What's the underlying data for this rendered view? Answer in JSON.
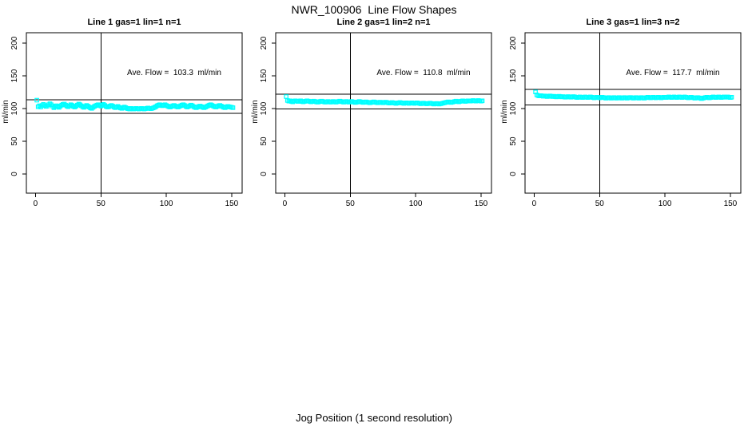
{
  "page_title": "NWR_100906  Line Flow Shapes",
  "xlabel": "Jog Position (1 second resolution)",
  "point_color": "#00FFFF",
  "axis_color": "#000000",
  "chart_data": [
    {
      "type": "scatter",
      "title": "Line 1 gas=1 lin=1 n=1",
      "ylabel": "ml/min",
      "annotation": "Ave. Flow =  103.3  ml/min",
      "ave_flow": 103.3,
      "upper_limit": 113.6,
      "lower_limit": 93.0,
      "vline_x": 50,
      "x_ticks": [
        0,
        50,
        100,
        150
      ],
      "y_ticks": [
        0,
        50,
        100,
        150,
        200
      ],
      "xlim": [
        -7,
        158
      ],
      "ylim": [
        -29,
        216
      ],
      "x_start": 1,
      "x_step": 1,
      "y": [
        113,
        103,
        104.5,
        102.5,
        105,
        106.5,
        105,
        103.5,
        104,
        106,
        107.5,
        106,
        104,
        101.5,
        103,
        104.5,
        103,
        102,
        104,
        105.5,
        106.5,
        107,
        105.5,
        104,
        103,
        104.5,
        106,
        105,
        103.5,
        102.5,
        104,
        105.5,
        107,
        106,
        104.5,
        103,
        102,
        103.5,
        105,
        104,
        102.5,
        101,
        100.5,
        102,
        103.5,
        104.5,
        105.5,
        106,
        105,
        104,
        105.5,
        106.5,
        105,
        103.5,
        102.5,
        103,
        104,
        105,
        104,
        102.5,
        101.5,
        102.5,
        103.5,
        102,
        101,
        100.5,
        101.5,
        102.5,
        101.5,
        100.5,
        100,
        99.5,
        100.5,
        100,
        99.5,
        100,
        100.5,
        100,
        99.5,
        100,
        100.5,
        100,
        99.5,
        100,
        100.5,
        101,
        100.5,
        100,
        100.5,
        101,
        102,
        103,
        104.5,
        105.5,
        106,
        105,
        104.5,
        105.5,
        106,
        105,
        104,
        103,
        102.5,
        103.5,
        104.5,
        105,
        104,
        103,
        102.5,
        103.5,
        104.5,
        105.5,
        106,
        105,
        103.5,
        102.5,
        103.5,
        104.5,
        105.5,
        104.5,
        103,
        102,
        101.5,
        102.5,
        103.5,
        104,
        103,
        102,
        101.5,
        102.5,
        103.5,
        104.5,
        105.5,
        106,
        105,
        104,
        103,
        102.5,
        103.5,
        104.5,
        105,
        104,
        103,
        102,
        101.5,
        102.5,
        103.5,
        103,
        102.5,
        102,
        101.5
      ]
    },
    {
      "type": "scatter",
      "title": "Line 2 gas=1 lin=2 n=1",
      "ylabel": "ml/min",
      "annotation": "Ave. Flow =  110.8  ml/min",
      "ave_flow": 110.8,
      "upper_limit": 121.9,
      "lower_limit": 99.7,
      "vline_x": 50,
      "x_ticks": [
        0,
        50,
        100,
        150
      ],
      "y_ticks": [
        0,
        50,
        100,
        150,
        200
      ],
      "xlim": [
        -7,
        158
      ],
      "ylim": [
        -29,
        216
      ],
      "x_start": 1,
      "x_step": 1,
      "y": [
        118.5,
        112.5,
        111.5,
        112,
        111,
        110.5,
        111.5,
        112,
        111.5,
        111,
        111.5,
        112,
        111,
        110.5,
        111,
        111.5,
        112,
        111.5,
        111,
        110.5,
        111,
        111.5,
        111,
        110.5,
        110,
        110.5,
        111,
        111.5,
        111,
        110.5,
        110,
        110.5,
        111,
        110.5,
        110,
        110.5,
        111,
        110.5,
        110,
        110.5,
        111,
        111.5,
        111,
        110.5,
        110,
        110.5,
        111,
        110.5,
        110,
        110.5,
        111,
        110.5,
        110,
        109.5,
        110,
        110.5,
        111,
        110.5,
        110,
        109.5,
        110,
        110.5,
        110,
        109.5,
        109,
        109.5,
        110,
        110.5,
        110,
        109.5,
        109,
        109.5,
        110,
        109.5,
        109,
        109.5,
        110,
        109.5,
        109,
        108.5,
        109,
        109.5,
        109,
        108.5,
        108,
        108.5,
        109,
        109.5,
        109,
        108.5,
        108,
        108.5,
        109,
        108.5,
        108,
        108.5,
        109,
        108.5,
        108,
        108.5,
        109,
        108.5,
        108,
        107.5,
        108,
        108.5,
        108,
        107.5,
        107.5,
        108,
        108.5,
        108,
        107.5,
        107,
        107.5,
        108,
        107.5,
        107,
        107.5,
        108,
        108.5,
        109,
        109.5,
        110,
        110.5,
        110,
        109.5,
        110,
        110.5,
        111,
        111.5,
        111,
        110.5,
        111,
        111.5,
        112,
        111.5,
        111,
        111.5,
        112,
        112,
        111.5,
        112,
        112.5,
        112,
        111.5,
        112,
        112.5,
        112,
        111.5,
        112
      ]
    },
    {
      "type": "scatter",
      "title": "Line 3 gas=1 lin=3 n=2",
      "ylabel": "ml/min",
      "annotation": "Ave. Flow =  117.7  ml/min",
      "ave_flow": 117.7,
      "upper_limit": 129.5,
      "lower_limit": 105.9,
      "vline_x": 50,
      "x_ticks": [
        0,
        50,
        100,
        150
      ],
      "y_ticks": [
        0,
        50,
        100,
        150,
        200
      ],
      "xlim": [
        -7,
        158
      ],
      "ylim": [
        -29,
        216
      ],
      "x_start": 1,
      "x_step": 1,
      "y": [
        125.5,
        121,
        120,
        119.5,
        120,
        119.5,
        119,
        119.5,
        119,
        118.5,
        119,
        119.5,
        119,
        118.5,
        119,
        118.5,
        118,
        118.5,
        119,
        118.5,
        118,
        118.5,
        118,
        117.5,
        118,
        118.5,
        118,
        117.5,
        118,
        118.5,
        118,
        117.5,
        117,
        117.5,
        118,
        117.5,
        117,
        117.5,
        118,
        117.5,
        117,
        117.5,
        118,
        117.5,
        117,
        116.5,
        117,
        117.5,
        117,
        116.5,
        117,
        117.5,
        117,
        116.5,
        116,
        116.5,
        117,
        116.5,
        116,
        116.5,
        117,
        116.5,
        116,
        116.5,
        117,
        116.5,
        116,
        116.5,
        117,
        116.5,
        116,
        116.5,
        117,
        117,
        116.5,
        116,
        116.5,
        117,
        116.5,
        116,
        116.5,
        117,
        116.5,
        116,
        116.5,
        117,
        117.5,
        117,
        116.5,
        117,
        117.5,
        117,
        116.5,
        117,
        117.5,
        117,
        116.5,
        117,
        117.5,
        117,
        117,
        117.5,
        118,
        117.5,
        117,
        117.5,
        118,
        117.5,
        117,
        117.5,
        118,
        117.5,
        117,
        117.5,
        118,
        117.5,
        117,
        116.5,
        117,
        117.5,
        117,
        116.5,
        116,
        116.5,
        117,
        116.5,
        116,
        115.5,
        116,
        116.5,
        117,
        117.5,
        117,
        116.5,
        117,
        117.5,
        118,
        117.5,
        117,
        117.5,
        118,
        117.5,
        117,
        117.5,
        118,
        117.5,
        117.5,
        118,
        117.5,
        117,
        117.5
      ]
    }
  ]
}
